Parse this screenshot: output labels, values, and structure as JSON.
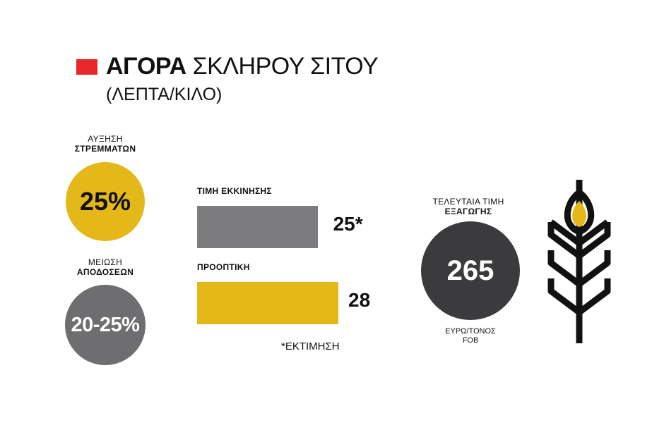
{
  "title": {
    "bold": "ΑΓΟΡΑ",
    "regular": " ΣΚΛΗΡΟΥ ΣΙΤΟΥ",
    "subtitle": "(ΛΕΠΤΑ/ΚΙΛΟ)",
    "marker_color": "#e8282b"
  },
  "stats": {
    "acres": {
      "line1": "ΑΥΞΗΣΗ",
      "line2": "ΣΤΡΕΜΜΑΤΩΝ",
      "value": "25%",
      "color": "#e5b81a"
    },
    "yield": {
      "line1": "ΜΕΙΩΣΗ",
      "line2": "ΑΠΟΔΟΣΕΩΝ",
      "value": "20-25%",
      "color": "#6e6e70"
    }
  },
  "chart_data": {
    "type": "bar",
    "orientation": "horizontal",
    "categories": [
      "ΤΙΜΗ ΕΚΚΙΝΗΣΗΣ",
      "ΠΡΟΟΠΤΙΚΗ"
    ],
    "values": [
      25,
      28
    ],
    "value_labels": [
      "25*",
      "28"
    ],
    "colors": [
      "#7c7c7f",
      "#e5b81a"
    ],
    "footnote": "*ΕΚΤΙΜΗΣΗ"
  },
  "export": {
    "line1": "ΤΕΛΕΥΤΑΙΑ ΤΙΜΗ",
    "line2": "ΕΞΑΓΩΓΗΣ",
    "value": "265",
    "unit_line1": "ΕΥΡΩ/ΤΟΝΟΣ",
    "unit_line2": "FOB",
    "color": "#3b3b3d"
  },
  "icon": {
    "name": "wheat-icon",
    "accent": "#e5b81a"
  }
}
